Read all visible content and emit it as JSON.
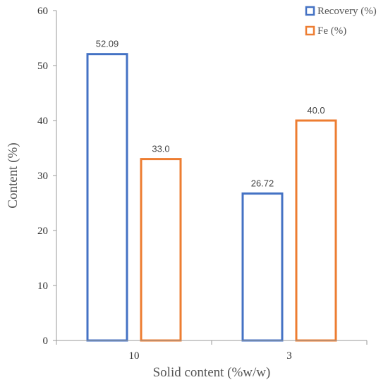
{
  "chart_data": {
    "type": "bar",
    "title": "",
    "xlabel": "Solid content (%w/w)",
    "ylabel": "Content (%)",
    "categories": [
      "10",
      "3"
    ],
    "ylim": [
      0,
      60
    ],
    "yticks": [
      0,
      10,
      20,
      30,
      40,
      50,
      60
    ],
    "grid": false,
    "legend_position": "top-right",
    "bar_style": "outlined",
    "series": [
      {
        "name": "Recovery (%)",
        "values": [
          52.09,
          26.72
        ],
        "labels": [
          "52.09",
          "26.72"
        ],
        "color": "#4472C4"
      },
      {
        "name": "Fe (%)",
        "values": [
          33.0,
          40.0
        ],
        "labels": [
          "33.0",
          "40.0"
        ],
        "color": "#ED7D31"
      }
    ]
  }
}
